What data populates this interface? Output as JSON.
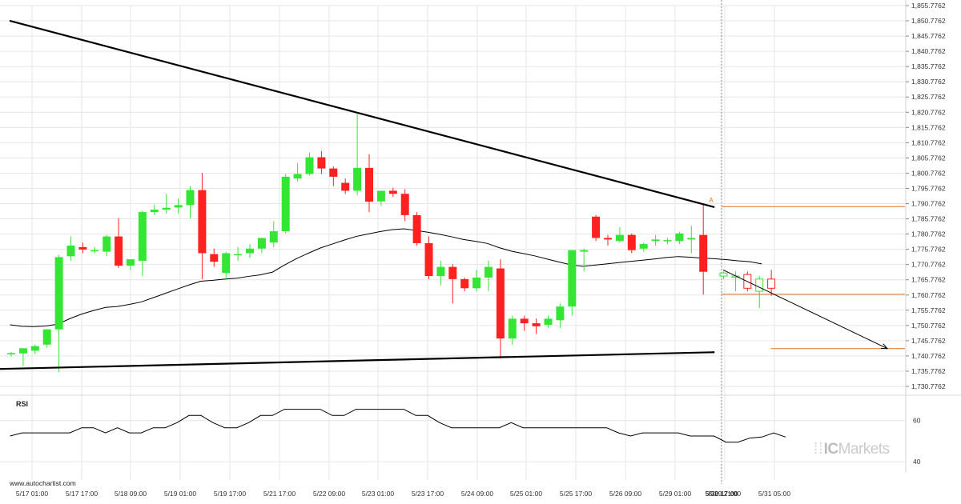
{
  "watermark": {
    "brand_prefix": "IC",
    "brand_suffix": "Markets"
  },
  "credit": "www.autochartist.com",
  "rsi_label": "RSI",
  "colors": {
    "up": "#33e633",
    "down": "#ff2020",
    "trend": "#000000",
    "ma": "#000000",
    "level": "#e07020",
    "grid": "#e6e6e6"
  },
  "chart_data": [
    {
      "type": "candlestick",
      "title": "",
      "y_axis": {
        "position": "right",
        "ylim": [
          1730.7762,
          1855.7762
        ],
        "ticks": [
          "1,855.7762",
          "1,850.7762",
          "1,845.7762",
          "1,840.7762",
          "1,835.7762",
          "1,830.7762",
          "1,825.7762",
          "1,820.7762",
          "1,815.7762",
          "1,810.7762",
          "1,805.7762",
          "1,800.7762",
          "1,795.7762",
          "1,790.7762",
          "1,785.7762",
          "1,780.7762",
          "1,775.7762",
          "1,770.7762",
          "1,765.7762",
          "1,760.7762",
          "1,755.7762",
          "1,750.7762",
          "1,745.7762",
          "1,740.7762",
          "1,735.7762",
          "1,730.7762"
        ]
      },
      "x_axis": {
        "ticks": [
          "5/17 01:00",
          "5/17 17:00",
          "5/18 09:00",
          "5/19 01:00",
          "5/19 17:00",
          "5/21 17:00",
          "5/22 09:00",
          "5/23 01:00",
          "5/23 17:00",
          "5/24 09:00",
          "5/25 01:00",
          "5/25 17:00",
          "5/26 09:00",
          "5/29 01:00",
          "5/29 21:00",
          "5/30 17:00",
          "5/31 05:00"
        ],
        "highlight": "5/30 17:00"
      },
      "candles": [
        {
          "o": 1741.4,
          "h": 1742.0,
          "l": 1740.6,
          "c": 1741.7
        },
        {
          "o": 1741.6,
          "h": 1743.0,
          "l": 1737.5,
          "c": 1743.3
        },
        {
          "o": 1742.5,
          "h": 1744.5,
          "l": 1741.4,
          "c": 1744.0
        },
        {
          "o": 1744.5,
          "h": 1749.5,
          "l": 1743.5,
          "c": 1749.5
        },
        {
          "o": 1749.5,
          "h": 1773.9,
          "l": 1735.5,
          "c": 1773.2
        },
        {
          "o": 1773.5,
          "h": 1780.0,
          "l": 1772.0,
          "c": 1777.0
        },
        {
          "o": 1776.5,
          "h": 1778.0,
          "l": 1774.5,
          "c": 1775.7
        },
        {
          "o": 1775.5,
          "h": 1776.5,
          "l": 1774.5,
          "c": 1775.5
        },
        {
          "o": 1775.0,
          "h": 1780.5,
          "l": 1773.5,
          "c": 1780.0
        },
        {
          "o": 1780.0,
          "h": 1786.0,
          "l": 1769.7,
          "c": 1770.4
        },
        {
          "o": 1770.4,
          "h": 1772.0,
          "l": 1769.0,
          "c": 1772.5
        },
        {
          "o": 1772.0,
          "h": 1788.5,
          "l": 1767.0,
          "c": 1788.0
        },
        {
          "o": 1788.0,
          "h": 1790.5,
          "l": 1787.0,
          "c": 1788.8
        },
        {
          "o": 1788.8,
          "h": 1794.0,
          "l": 1787.5,
          "c": 1789.4
        },
        {
          "o": 1789.5,
          "h": 1792.5,
          "l": 1787.5,
          "c": 1790.3
        },
        {
          "o": 1790.3,
          "h": 1796.5,
          "l": 1786.0,
          "c": 1795.2
        },
        {
          "o": 1795.2,
          "h": 1800.9,
          "l": 1766.0,
          "c": 1774.5
        },
        {
          "o": 1774.2,
          "h": 1776.0,
          "l": 1770.0,
          "c": 1771.7
        },
        {
          "o": 1768.0,
          "h": 1775.0,
          "l": 1766.0,
          "c": 1774.5
        },
        {
          "o": 1774.2,
          "h": 1776.5,
          "l": 1772.0,
          "c": 1774.2
        },
        {
          "o": 1774.5,
          "h": 1777.5,
          "l": 1773.0,
          "c": 1776.0
        },
        {
          "o": 1776.0,
          "h": 1779.5,
          "l": 1774.5,
          "c": 1779.5
        },
        {
          "o": 1778.0,
          "h": 1785.0,
          "l": 1776.5,
          "c": 1781.7
        },
        {
          "o": 1781.7,
          "h": 1800.5,
          "l": 1781.0,
          "c": 1799.6
        },
        {
          "o": 1799.0,
          "h": 1804.0,
          "l": 1798.0,
          "c": 1800.5
        },
        {
          "o": 1800.5,
          "h": 1807.5,
          "l": 1800.0,
          "c": 1806.0
        },
        {
          "o": 1806.0,
          "h": 1808.0,
          "l": 1800.5,
          "c": 1802.3
        },
        {
          "o": 1802.3,
          "h": 1803.0,
          "l": 1796.5,
          "c": 1799.6
        },
        {
          "o": 1797.6,
          "h": 1799.0,
          "l": 1794.0,
          "c": 1795.0
        },
        {
          "o": 1795.0,
          "h": 1820.2,
          "l": 1793.5,
          "c": 1802.5
        },
        {
          "o": 1802.5,
          "h": 1807.0,
          "l": 1788.0,
          "c": 1791.4
        },
        {
          "o": 1791.5,
          "h": 1795.0,
          "l": 1790.0,
          "c": 1795.0
        },
        {
          "o": 1795.0,
          "h": 1796.0,
          "l": 1793.0,
          "c": 1794.0
        },
        {
          "o": 1794.0,
          "h": 1795.5,
          "l": 1785.0,
          "c": 1787.0
        },
        {
          "o": 1787.0,
          "h": 1788.0,
          "l": 1777.0,
          "c": 1777.8
        },
        {
          "o": 1777.8,
          "h": 1780.0,
          "l": 1766.0,
          "c": 1767.0
        },
        {
          "o": 1767.0,
          "h": 1772.0,
          "l": 1764.0,
          "c": 1770.0
        },
        {
          "o": 1770.0,
          "h": 1770.9,
          "l": 1758.0,
          "c": 1766.0
        },
        {
          "o": 1766.0,
          "h": 1766.5,
          "l": 1762.0,
          "c": 1763.0
        },
        {
          "o": 1763.0,
          "h": 1769.0,
          "l": 1762.0,
          "c": 1766.5
        },
        {
          "o": 1766.5,
          "h": 1772.0,
          "l": 1762.0,
          "c": 1770.0
        },
        {
          "o": 1769.5,
          "h": 1772.5,
          "l": 1739.9,
          "c": 1746.5
        },
        {
          "o": 1746.5,
          "h": 1754.0,
          "l": 1744.5,
          "c": 1753.0
        },
        {
          "o": 1753.0,
          "h": 1754.0,
          "l": 1749.0,
          "c": 1751.5
        },
        {
          "o": 1751.5,
          "h": 1753.0,
          "l": 1748.0,
          "c": 1750.5
        },
        {
          "o": 1751.0,
          "h": 1754.0,
          "l": 1750.0,
          "c": 1753.0
        },
        {
          "o": 1752.5,
          "h": 1758.0,
          "l": 1750.0,
          "c": 1757.0
        },
        {
          "o": 1757.0,
          "h": 1775.5,
          "l": 1754.0,
          "c": 1775.5
        },
        {
          "o": 1775.0,
          "h": 1776.0,
          "l": 1768.5,
          "c": 1775.5
        },
        {
          "o": 1786.5,
          "h": 1787.0,
          "l": 1778.5,
          "c": 1779.5
        },
        {
          "o": 1779.5,
          "h": 1780.5,
          "l": 1777.0,
          "c": 1779.0
        },
        {
          "o": 1778.5,
          "h": 1783.0,
          "l": 1778.0,
          "c": 1780.5
        },
        {
          "o": 1780.5,
          "h": 1781.0,
          "l": 1774.5,
          "c": 1775.5
        },
        {
          "o": 1776.0,
          "h": 1778.0,
          "l": 1775.0,
          "c": 1777.5
        },
        {
          "o": 1778.5,
          "h": 1780.5,
          "l": 1777.0,
          "c": 1779.0
        },
        {
          "o": 1778.5,
          "h": 1779.5,
          "l": 1777.5,
          "c": 1778.8
        },
        {
          "o": 1778.5,
          "h": 1781.5,
          "l": 1777.5,
          "c": 1781.0
        },
        {
          "o": 1779.0,
          "h": 1783.5,
          "l": 1774.5,
          "c": 1779.5
        },
        {
          "o": 1780.5,
          "h": 1790.5,
          "l": 1760.9,
          "c": 1768.4
        }
      ],
      "future_candles": [
        {
          "o": 1767.0,
          "h": 1768.5,
          "l": 1766.0,
          "c": 1768.0
        },
        {
          "o": 1767.0,
          "h": 1768.5,
          "l": 1762.0,
          "c": 1767.0
        },
        {
          "o": 1767.5,
          "h": 1768.5,
          "l": 1762.0,
          "c": 1763.0
        },
        {
          "o": 1762.0,
          "h": 1767.0,
          "l": 1756.5,
          "c": 1766.0
        },
        {
          "o": 1766.0,
          "h": 1769.0,
          "l": 1760.5,
          "c": 1763.0
        }
      ],
      "moving_average": [
        1751.0,
        1750.5,
        1750.4,
        1750.6,
        1751.2,
        1753.0,
        1754.5,
        1755.7,
        1756.7,
        1757.0,
        1757.7,
        1758.5,
        1759.9,
        1761.3,
        1762.7,
        1764.1,
        1765.3,
        1765.6,
        1766.0,
        1766.3,
        1766.9,
        1767.4,
        1768.3,
        1770.6,
        1772.7,
        1774.5,
        1776.2,
        1777.5,
        1778.8,
        1780.0,
        1780.8,
        1781.6,
        1782.2,
        1782.5,
        1782.0,
        1781.4,
        1780.7,
        1779.9,
        1779.0,
        1778.4,
        1777.7,
        1776.3,
        1775.2,
        1774.4,
        1773.6,
        1772.6,
        1771.6,
        1770.7,
        1770.2,
        1770.6,
        1771.0,
        1771.4,
        1771.8,
        1772.2,
        1772.6,
        1773.1,
        1773.4,
        1773.2,
        1772.9,
        1772.7,
        1772.4,
        1772.0,
        1771.7,
        1771.0
      ],
      "pattern": {
        "name": "",
        "upper_line": [
          {
            "i": 0,
            "y": 1850.8
          },
          {
            "i": 58,
            "y": 1789.6
          }
        ],
        "lower_line": [
          {
            "i": 0,
            "y": 1736.5
          },
          {
            "i": 58,
            "y": 1742.0
          }
        ],
        "marker_label": "A",
        "marker_at": {
          "i": 58,
          "y": 1790.9
        }
      },
      "projection": {
        "levels": [
          1789.8,
          1761.0,
          1743.2
        ],
        "arrow_from": {
          "i": 58,
          "y": 1769.0
        },
        "arrow_to": {
          "i": 65.5,
          "y": 1743.2
        }
      }
    },
    {
      "type": "line",
      "title": "RSI",
      "y_ticks": [
        "60",
        "40"
      ],
      "ylim": [
        35,
        70
      ],
      "values": [
        52.5,
        54.0,
        54.0,
        54.0,
        54.0,
        54.0,
        56.5,
        56.5,
        54.0,
        56.5,
        54.0,
        54.0,
        56.5,
        56.5,
        59.0,
        62.5,
        62.5,
        59.0,
        56.5,
        56.5,
        59.0,
        62.5,
        62.5,
        65.5,
        65.5,
        65.5,
        65.5,
        62.5,
        62.5,
        65.5,
        65.5,
        65.5,
        65.5,
        65.5,
        62.5,
        62.5,
        59.0,
        56.5,
        56.5,
        56.5,
        56.5,
        56.5,
        59.0,
        56.5,
        56.5,
        56.5,
        56.5,
        56.5,
        56.5,
        56.5,
        56.5,
        54.0,
        52.5,
        54.0,
        54.0,
        54.0,
        54.0,
        52.5,
        52.5,
        52.5,
        49.5,
        49.5,
        51.5,
        52.0,
        54.0,
        52.0
      ]
    }
  ]
}
